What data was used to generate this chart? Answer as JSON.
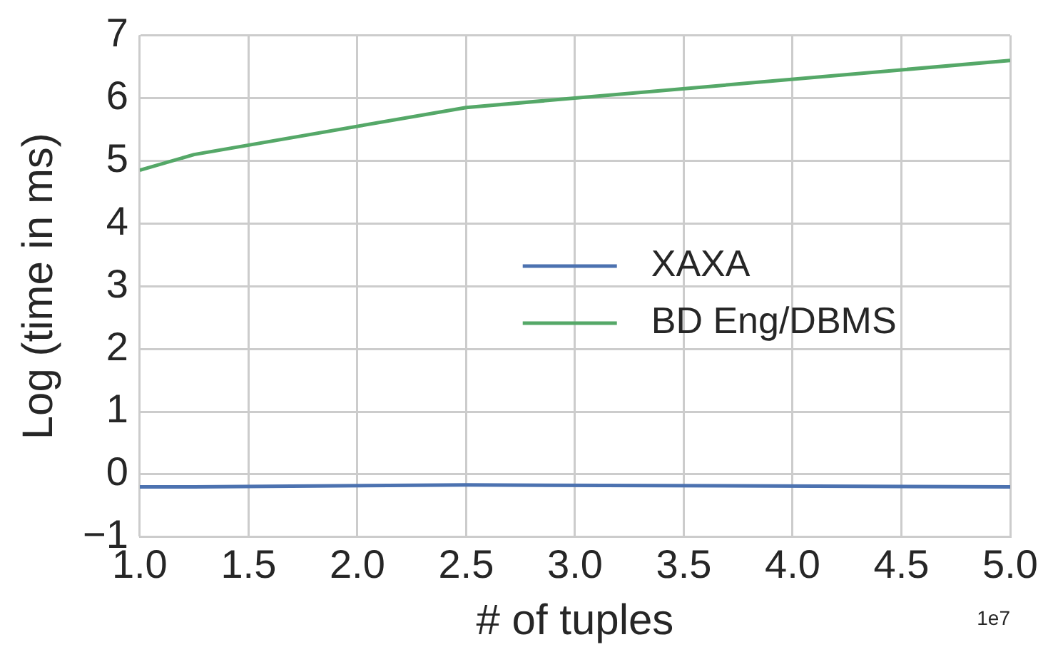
{
  "chart_data": {
    "type": "line",
    "xlabel": "# of tuples",
    "ylabel": "Log (time in ms)",
    "x": [
      1.0,
      1.25,
      2.5,
      5.0
    ],
    "series": [
      {
        "name": "XAXA",
        "color": "#4c72b0",
        "values": [
          -0.2,
          -0.2,
          -0.17,
          -0.2
        ]
      },
      {
        "name": "BD Eng/DBMS",
        "color": "#55a868",
        "values": [
          4.85,
          5.1,
          5.85,
          6.6
        ]
      }
    ],
    "xlim": [
      1.0,
      5.0
    ],
    "xticks": [
      {
        "value": 1.0,
        "label": "1.0"
      },
      {
        "value": 1.5,
        "label": "1.5"
      },
      {
        "value": 2.0,
        "label": "2.0"
      },
      {
        "value": 2.5,
        "label": "2.5"
      },
      {
        "value": 3.0,
        "label": "3.0"
      },
      {
        "value": 3.5,
        "label": "3.5"
      },
      {
        "value": 4.0,
        "label": "4.0"
      },
      {
        "value": 4.5,
        "label": "4.5"
      },
      {
        "value": 5.0,
        "label": "5.0"
      }
    ],
    "ylim": [
      -1,
      7
    ],
    "yticks": [
      {
        "value": -1,
        "label": "−1"
      },
      0,
      1,
      2,
      3,
      4,
      5,
      6,
      7
    ],
    "annotations": [
      "1e7"
    ],
    "grid": true,
    "legend": "right",
    "marker": "none",
    "line_style": "solid"
  }
}
